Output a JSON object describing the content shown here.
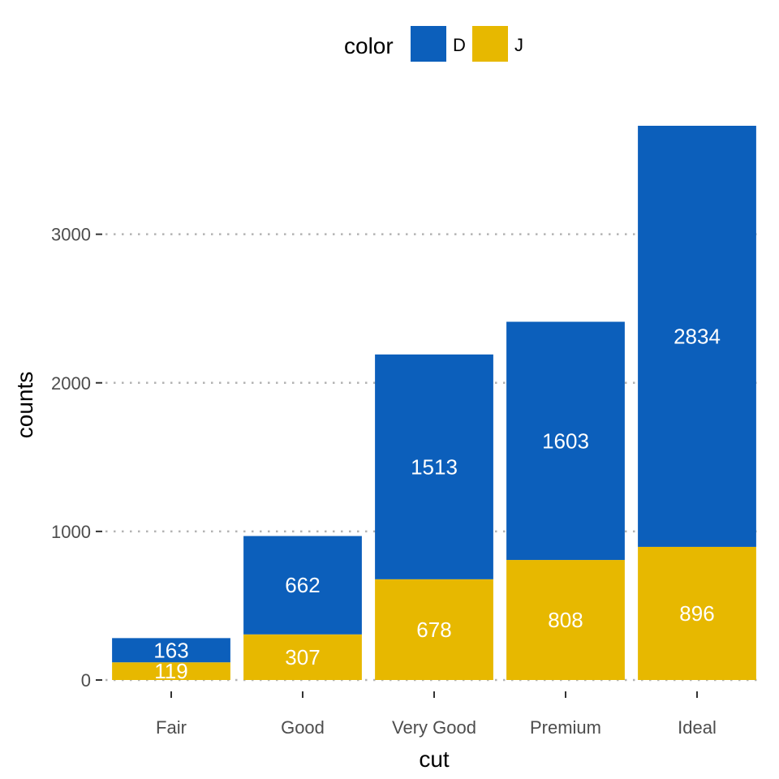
{
  "chart_data": {
    "type": "bar",
    "stacked": true,
    "categories": [
      "Fair",
      "Good",
      "Very Good",
      "Premium",
      "Ideal"
    ],
    "series": [
      {
        "name": "J",
        "color": "#E7B800",
        "values": [
          119,
          307,
          678,
          808,
          896
        ]
      },
      {
        "name": "D",
        "color": "#0C5FBB",
        "values": [
          163,
          662,
          1513,
          1603,
          2834
        ]
      }
    ],
    "title": "",
    "xlabel": "cut",
    "ylabel": "counts",
    "ylim": [
      0,
      3730
    ],
    "yticks": [
      0,
      1000,
      2000,
      3000
    ],
    "grid": "horizontal dotted",
    "legend": {
      "title": "color",
      "position": "top",
      "order": [
        "D",
        "J"
      ]
    }
  }
}
